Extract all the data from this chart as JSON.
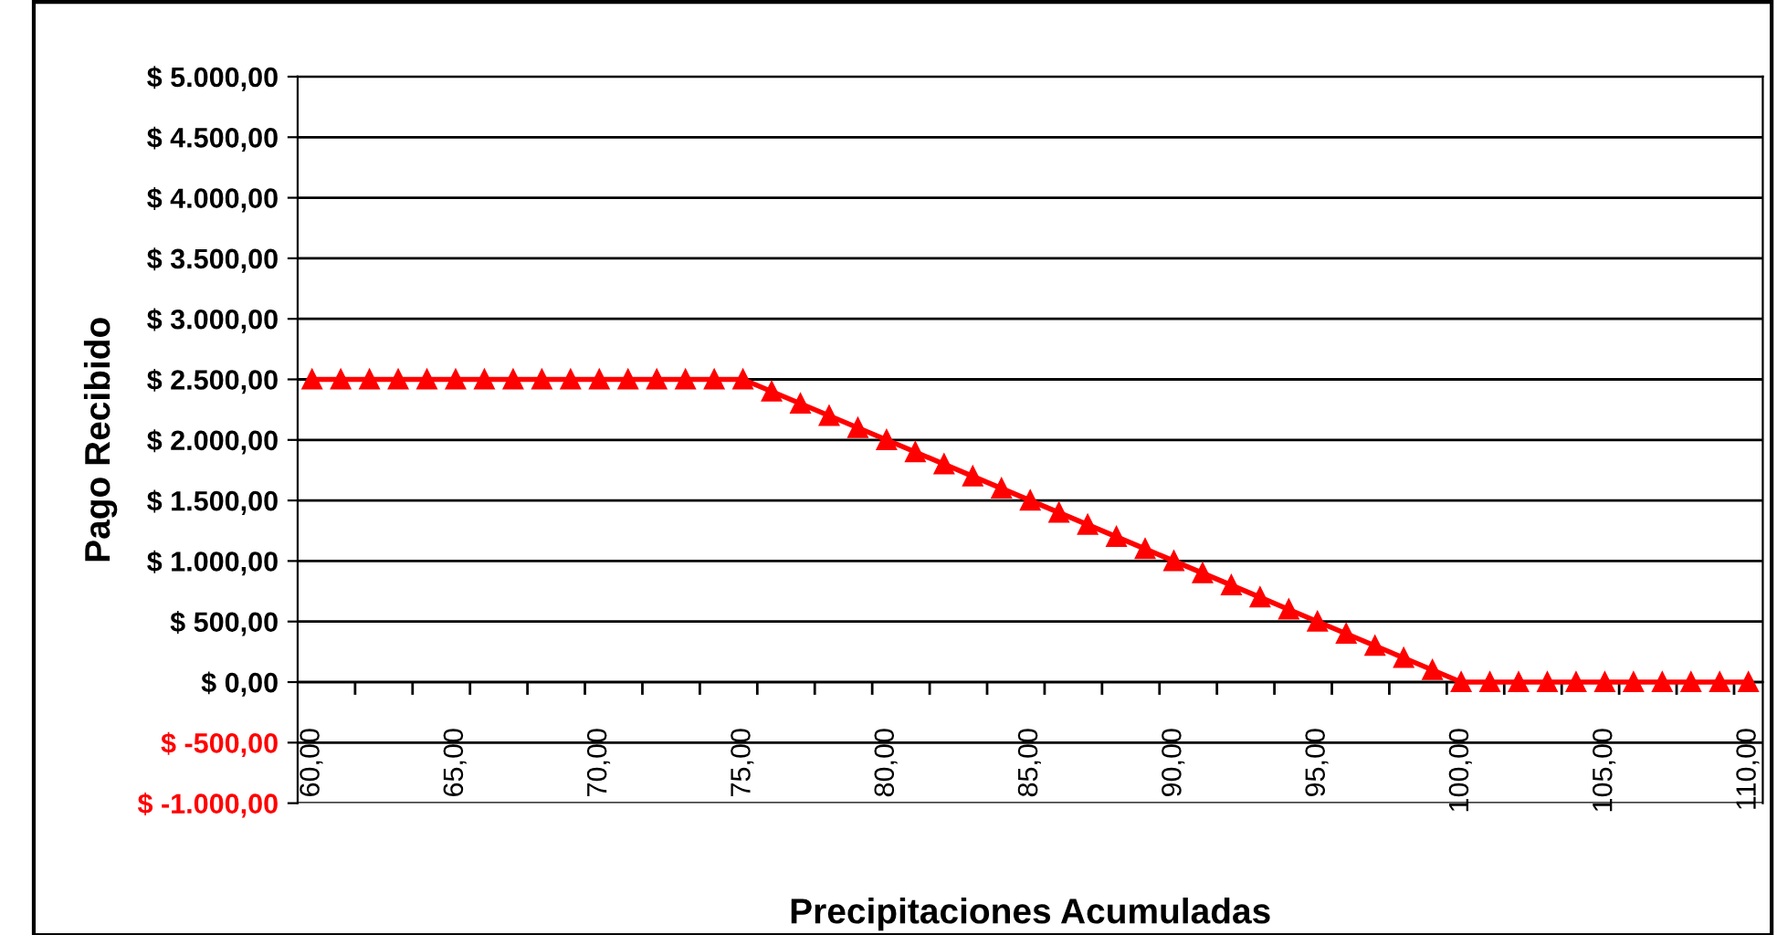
{
  "chart_data": {
    "type": "line",
    "xlabel": "Precipitaciones Acumuladas",
    "ylabel": "Pago Recibido",
    "x": [
      60,
      61,
      62,
      63,
      64,
      65,
      66,
      67,
      68,
      69,
      70,
      71,
      72,
      73,
      74,
      75,
      76,
      77,
      78,
      79,
      80,
      81,
      82,
      83,
      84,
      85,
      86,
      87,
      88,
      89,
      90,
      91,
      92,
      93,
      94,
      95,
      96,
      97,
      98,
      99,
      100,
      101,
      102,
      103,
      104,
      105,
      106,
      107,
      108,
      109,
      110
    ],
    "series": [
      {
        "color": "#ff0000",
        "values": [
          2500,
          2500,
          2500,
          2500,
          2500,
          2500,
          2500,
          2500,
          2500,
          2500,
          2500,
          2500,
          2500,
          2500,
          2500,
          2500,
          2400,
          2300,
          2200,
          2100,
          2000,
          1900,
          1800,
          1700,
          1600,
          1500,
          1400,
          1300,
          1200,
          1100,
          1000,
          900,
          800,
          700,
          600,
          500,
          400,
          300,
          200,
          100,
          0,
          0,
          0,
          0,
          0,
          0,
          0,
          0,
          0,
          0,
          0
        ]
      }
    ],
    "marker": "triangle",
    "line_style": "solid",
    "grid": "y",
    "legend": false,
    "xlim": [
      59.5,
      110.5
    ],
    "xticks": [
      {
        "value": 60,
        "label": "60,00"
      },
      {
        "value": 65,
        "label": "65,00"
      },
      {
        "value": 70,
        "label": "70,00"
      },
      {
        "value": 75,
        "label": "75,00"
      },
      {
        "value": 80,
        "label": "80,00"
      },
      {
        "value": 85,
        "label": "85,00"
      },
      {
        "value": 90,
        "label": "90,00"
      },
      {
        "value": 95,
        "label": "95,00"
      },
      {
        "value": 100,
        "label": "100,00"
      },
      {
        "value": 105,
        "label": "105,00"
      },
      {
        "value": 110,
        "label": "110,00"
      },
      {
        "value": 61.5,
        "label": null
      },
      {
        "value": 63.5,
        "label": null
      },
      {
        "value": 65.5,
        "label": null
      },
      {
        "value": 67.5,
        "label": null
      },
      {
        "value": 69.5,
        "label": null
      },
      {
        "value": 71.5,
        "label": null
      },
      {
        "value": 73.5,
        "label": null
      },
      {
        "value": 75.5,
        "label": null
      },
      {
        "value": 77.5,
        "label": null
      },
      {
        "value": 79.5,
        "label": null
      },
      {
        "value": 81.5,
        "label": null
      },
      {
        "value": 83.5,
        "label": null
      },
      {
        "value": 85.5,
        "label": null
      },
      {
        "value": 87.5,
        "label": null
      },
      {
        "value": 89.5,
        "label": null
      },
      {
        "value": 91.5,
        "label": null
      },
      {
        "value": 93.5,
        "label": null
      },
      {
        "value": 95.5,
        "label": null
      },
      {
        "value": 97.5,
        "label": null
      },
      {
        "value": 99.5,
        "label": null
      },
      {
        "value": 101.5,
        "label": null
      },
      {
        "value": 103.5,
        "label": null
      },
      {
        "value": 105.5,
        "label": null
      },
      {
        "value": 107.5,
        "label": null
      },
      {
        "value": 109.5,
        "label": null
      }
    ],
    "ylim": [
      -1000,
      5000
    ],
    "yticks": [
      {
        "value": -1000,
        "label": "$ -1.000,00"
      },
      {
        "value": -500,
        "label": "$ -500,00"
      },
      {
        "value": 0,
        "label": "$ 0,00"
      },
      {
        "value": 500,
        "label": "$ 500,00"
      },
      {
        "value": 1000,
        "label": "$ 1.000,00"
      },
      {
        "value": 1500,
        "label": "$ 1.500,00"
      },
      {
        "value": 2000,
        "label": "$ 2.000,00"
      },
      {
        "value": 2500,
        "label": "$ 2.500,00"
      },
      {
        "value": 3000,
        "label": "$ 3.000,00"
      },
      {
        "value": 3500,
        "label": "$ 3.500,00"
      },
      {
        "value": 4000,
        "label": "$ 4.000,00"
      },
      {
        "value": 4500,
        "label": "$ 4.500,00"
      },
      {
        "value": 5000,
        "label": "$ 5.000,00"
      }
    ]
  }
}
